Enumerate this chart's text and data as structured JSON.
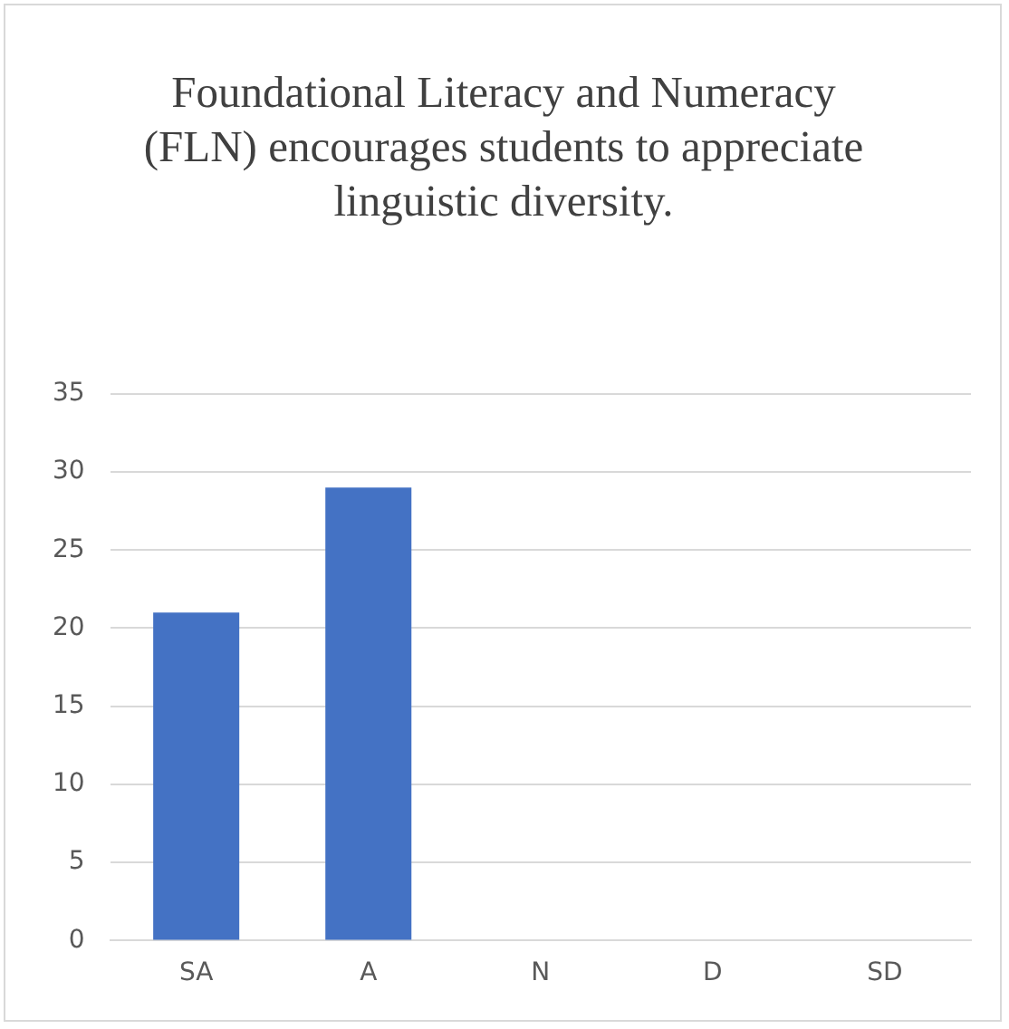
{
  "chart_data": {
    "type": "bar",
    "title": "Foundational Literacy and Numeracy (FLN) encourages students to appreciate linguistic diversity.",
    "categories": [
      "SA",
      "A",
      "N",
      "D",
      "SD"
    ],
    "values": [
      21,
      29,
      0,
      0,
      0
    ],
    "color": "#4472c4",
    "ylim": [
      0,
      35
    ],
    "yticks": [
      0,
      5,
      10,
      15,
      20,
      25,
      30,
      35
    ],
    "grid": "y"
  }
}
